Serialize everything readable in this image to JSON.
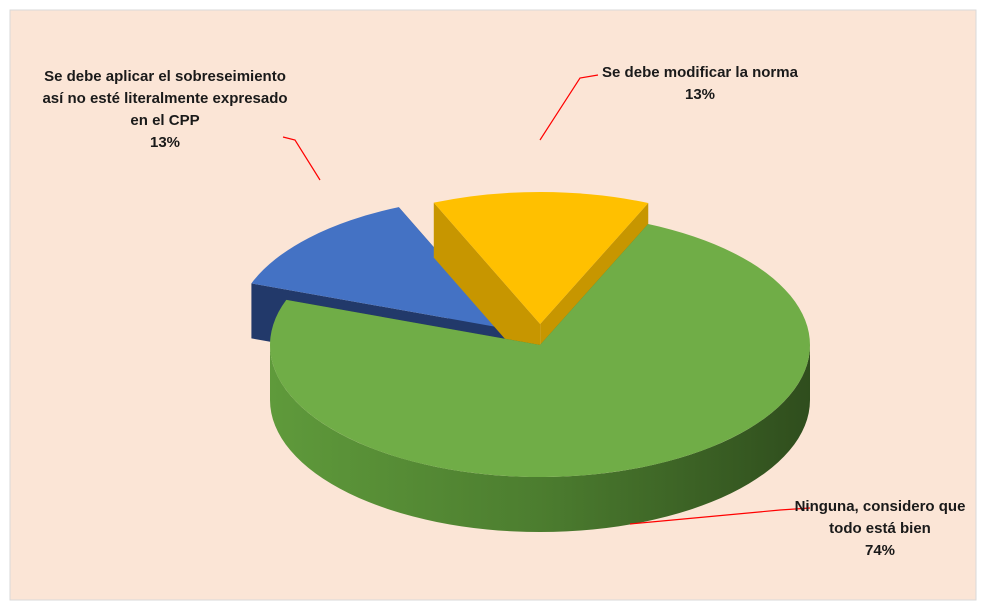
{
  "chart_data": {
    "type": "pie",
    "categories": [
      "Se debe aplicar el sobreseimiento así no esté literalmente expresado en el CPP",
      "Se debe modificar la norma",
      "Ninguna, considero que todo está bien"
    ],
    "values": [
      13,
      13,
      74
    ],
    "value_labels": [
      "13%",
      "13%",
      "74%"
    ],
    "colors": [
      "#4472c4",
      "#ffc000",
      "#70ad47"
    ]
  }
}
